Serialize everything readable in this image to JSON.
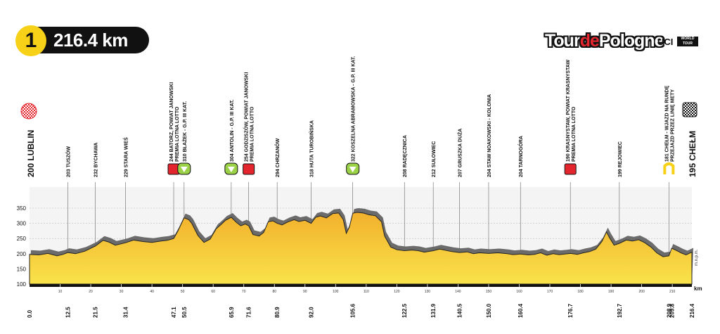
{
  "stage": {
    "number": "1",
    "distance": "216.4 km"
  },
  "logo": {
    "part1": "Tour",
    "part2": "de",
    "part3": "Pologne",
    "uci": "UCI",
    "worldtour": "WORLD TOUR"
  },
  "start": {
    "label": "200 LUBLIN"
  },
  "finish": {
    "label": "195 CHEŁM"
  },
  "colors": {
    "profile_fill": "#f2c531",
    "profile_shadow": "#6b6b6b",
    "sprint": "#e3262e",
    "kom": "#9bd147",
    "badge": "#f7d117"
  },
  "chart_data": {
    "type": "area",
    "title": "",
    "xlabel": "",
    "ylabel": "m.n.p.m.",
    "xunit": "km",
    "xlim": [
      0,
      216.4
    ],
    "ylim": [
      100,
      400
    ],
    "yticks": [
      100,
      150,
      200,
      250,
      300,
      350
    ],
    "xticks": [
      10,
      20,
      30,
      40,
      50,
      60,
      70,
      80,
      90,
      100,
      110,
      120,
      130,
      140,
      150,
      160,
      170,
      180,
      190,
      200,
      210
    ],
    "profile": [
      [
        0,
        198
      ],
      [
        3,
        196
      ],
      [
        6,
        201
      ],
      [
        9,
        193
      ],
      [
        11,
        198
      ],
      [
        12.5,
        204
      ],
      [
        15,
        200
      ],
      [
        18,
        208
      ],
      [
        21.5,
        225
      ],
      [
        24,
        244
      ],
      [
        26,
        238
      ],
      [
        28,
        228
      ],
      [
        31.4,
        236
      ],
      [
        34,
        245
      ],
      [
        37,
        240
      ],
      [
        40,
        237
      ],
      [
        43,
        242
      ],
      [
        45,
        244
      ],
      [
        47.1,
        250
      ],
      [
        48.5,
        275
      ],
      [
        50.5,
        318
      ],
      [
        52,
        312
      ],
      [
        53,
        300
      ],
      [
        55,
        260
      ],
      [
        57,
        237
      ],
      [
        59,
        248
      ],
      [
        61,
        282
      ],
      [
        63,
        300
      ],
      [
        64,
        310
      ],
      [
        65.9,
        320
      ],
      [
        67.5,
        304
      ],
      [
        69,
        292
      ],
      [
        70.5,
        298
      ],
      [
        71.6,
        292
      ],
      [
        73,
        263
      ],
      [
        75,
        258
      ],
      [
        76.5,
        270
      ],
      [
        78,
        305
      ],
      [
        79.5,
        308
      ],
      [
        80.9,
        300
      ],
      [
        82.5,
        295
      ],
      [
        84.5,
        305
      ],
      [
        86.5,
        312
      ],
      [
        88,
        306
      ],
      [
        90,
        310
      ],
      [
        92,
        300
      ],
      [
        93.5,
        320
      ],
      [
        95,
        324
      ],
      [
        97,
        318
      ],
      [
        99,
        332
      ],
      [
        101,
        334
      ],
      [
        102.5,
        312
      ],
      [
        103.5,
        267
      ],
      [
        104.5,
        288
      ],
      [
        105.6,
        333
      ],
      [
        107,
        336
      ],
      [
        109,
        334
      ],
      [
        111,
        328
      ],
      [
        113,
        325
      ],
      [
        115,
        305
      ],
      [
        116,
        258
      ],
      [
        118,
        222
      ],
      [
        120,
        213
      ],
      [
        122.5,
        210
      ],
      [
        125,
        212
      ],
      [
        127,
        210
      ],
      [
        129,
        205
      ],
      [
        131.9,
        210
      ],
      [
        134,
        215
      ],
      [
        136,
        211
      ],
      [
        138,
        207
      ],
      [
        140.5,
        204
      ],
      [
        143,
        206
      ],
      [
        145,
        200
      ],
      [
        147,
        203
      ],
      [
        150,
        201
      ],
      [
        153,
        203
      ],
      [
        156,
        200
      ],
      [
        158,
        197
      ],
      [
        160.4,
        199
      ],
      [
        163,
        196
      ],
      [
        165,
        198
      ],
      [
        167,
        203
      ],
      [
        169,
        195
      ],
      [
        171,
        200
      ],
      [
        173,
        197
      ],
      [
        175,
        199
      ],
      [
        176.7,
        201
      ],
      [
        179,
        198
      ],
      [
        181,
        203
      ],
      [
        183,
        207
      ],
      [
        185,
        215
      ],
      [
        187,
        240
      ],
      [
        188.5,
        272
      ],
      [
        189.5,
        252
      ],
      [
        191,
        228
      ],
      [
        192.7,
        234
      ],
      [
        195,
        245
      ],
      [
        197,
        242
      ],
      [
        199,
        246
      ],
      [
        201,
        236
      ],
      [
        203,
        222
      ],
      [
        205,
        202
      ],
      [
        207,
        190
      ],
      [
        208.9,
        193
      ],
      [
        209.8,
        218
      ],
      [
        211.5,
        210
      ],
      [
        213,
        202
      ],
      [
        214.5,
        196
      ],
      [
        216.4,
        205
      ]
    ],
    "km_markers": [
      "0.0",
      "12.5",
      "21.5",
      "31.4",
      "47.1",
      "50.5",
      "65.9",
      "71.6",
      "80.9",
      "92.0",
      "105.6",
      "122.5",
      "131.9",
      "140.5",
      "150.0",
      "160.4",
      "176.7",
      "192.7",
      "208.9",
      "209.8",
      "216.4"
    ],
    "waypoints": [
      {
        "km": 12.5,
        "label": "203 TUSZÓW",
        "label2": "",
        "icon": "none"
      },
      {
        "km": 21.5,
        "label": "232 BYCHAWA",
        "label2": "",
        "icon": "none"
      },
      {
        "km": 31.4,
        "label": "229 STARA WIEŚ",
        "label2": "",
        "icon": "none"
      },
      {
        "km": 47.1,
        "label": "244 BATORZ, POWIAT JANOWSKI",
        "label2": "PREMIA LOTNA LOTTO",
        "icon": "sprint"
      },
      {
        "km": 50.5,
        "label": "310 BŁAŻEK - G.P. III KAT.",
        "label2": "",
        "icon": "kom"
      },
      {
        "km": 65.9,
        "label": "304 ANTOLIN - G.P. III KAT.",
        "label2": "",
        "icon": "kom"
      },
      {
        "km": 71.6,
        "label": "254 GODZISZÓW, POWIAT JANOWSKI",
        "label2": "PREMIA LOTNA LOTTO",
        "icon": "sprint"
      },
      {
        "km": 80.9,
        "label": "294 CHRZANÓW",
        "label2": "",
        "icon": "none"
      },
      {
        "km": 92.0,
        "label": "318 HUTA TUROBIŃSKA",
        "label2": "",
        "icon": "none"
      },
      {
        "km": 105.6,
        "label": "322 KOSZELNA ABRAMOWSKA - G.P. III KAT.",
        "label2": "",
        "icon": "kom"
      },
      {
        "km": 122.5,
        "label": "208 RADĘCZNICA",
        "label2": "",
        "icon": "none"
      },
      {
        "km": 131.9,
        "label": "212 SUŁOWIEC",
        "label2": "",
        "icon": "none"
      },
      {
        "km": 140.5,
        "label": "207 GRUSZKA DUŻA",
        "label2": "",
        "icon": "none"
      },
      {
        "km": 150.0,
        "label": "204 STAW NOAKOWSKI - KOLONIA",
        "label2": "",
        "icon": "none"
      },
      {
        "km": 160.4,
        "label": "204 TARNOGÓRA",
        "label2": "",
        "icon": "none"
      },
      {
        "km": 176.7,
        "label": "190 KRASNYSTAW, POWIAT KRASNYSTAW",
        "label2": "PREMIA LOTNA LOTTO",
        "icon": "sprint"
      },
      {
        "km": 192.7,
        "label": "199 REJOWIEC",
        "label2": "",
        "icon": "none"
      },
      {
        "km": 208.9,
        "label": "181 CHEŁM - WJAZD NA RUNDĘ",
        "label2": "PRZEJAZD PRZEZ LINIĘ METY",
        "icon": "lap"
      }
    ]
  }
}
